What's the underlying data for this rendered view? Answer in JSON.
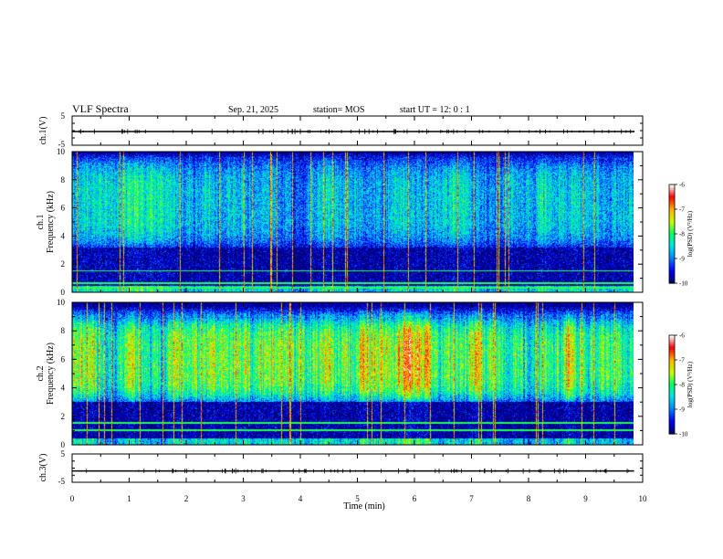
{
  "header": {
    "title": "VLF Spectra",
    "date": "Sep. 21, 2025",
    "station": "station= MOS",
    "start_ut": "start  UT =   12: 0  : 1"
  },
  "colors": {
    "background": "#ffffff",
    "axes": "#000000",
    "colormap": [
      "#00006e",
      "#0000ff",
      "#0096ff",
      "#00e6e6",
      "#00ff64",
      "#c8ff00",
      "#ffb400",
      "#ff0000",
      "#ffffff"
    ]
  },
  "chart_data": {
    "type": "heatmap",
    "title": "VLF Spectra",
    "xlabel": "Time  (min)",
    "x_ticks": [
      "0",
      "1",
      "2",
      "3",
      "4",
      "5",
      "6",
      "7",
      "8",
      "9",
      "10"
    ],
    "xlim": [
      0,
      10
    ],
    "data_end_min": 9.85,
    "panels": [
      {
        "id": "ch1-voltage",
        "ylabel": "ch.1(V)",
        "ylim": [
          -5,
          5
        ],
        "y_ticks": [
          "5",
          "-5"
        ],
        "trace_level": -0.3
      },
      {
        "id": "ch1-spectrogram",
        "ylabel": "ch.1\nFrequency  (kHz)",
        "ylabel_line1": "ch.1",
        "ylabel_line2": "Frequency  (kHz)",
        "ylim": [
          0,
          10
        ],
        "y_ticks": [
          "0",
          "2",
          "4",
          "6",
          "8",
          "10"
        ],
        "colorbar": {
          "label": "log(PSD) (V²/Hz)",
          "range": [
            -10,
            -6
          ],
          "ticks": [
            "-6",
            "-7",
            "-8",
            "-9",
            "-10"
          ]
        },
        "band_kHz": [
          3.2,
          9.5
        ],
        "band_level": 0.45,
        "narrowband_lines_kHz": [
          0.3,
          0.6,
          1.5
        ]
      },
      {
        "id": "ch2-spectrogram",
        "ylabel": "ch.2\nFrequency  (kHz)",
        "ylabel_line1": "ch.2",
        "ylabel_line2": "Frequency  (kHz)",
        "ylim": [
          0,
          10
        ],
        "y_ticks": [
          "0",
          "2",
          "4",
          "6",
          "8",
          "10"
        ],
        "colorbar": {
          "label": "log(PSD) (V²/Hz)",
          "range": [
            -10,
            -6
          ],
          "ticks": [
            "-6",
            "-7",
            "-8",
            "-9",
            "-10"
          ]
        },
        "band_kHz": [
          3.0,
          9.0
        ],
        "band_level": 0.75,
        "narrowband_lines_kHz": [
          1.0,
          1.5
        ]
      },
      {
        "id": "ch3-voltage",
        "ylabel": "ch.3(V)",
        "ylim": [
          -5,
          5
        ],
        "y_ticks": [
          "5",
          "-5"
        ],
        "trace_level": -1.0
      }
    ]
  }
}
